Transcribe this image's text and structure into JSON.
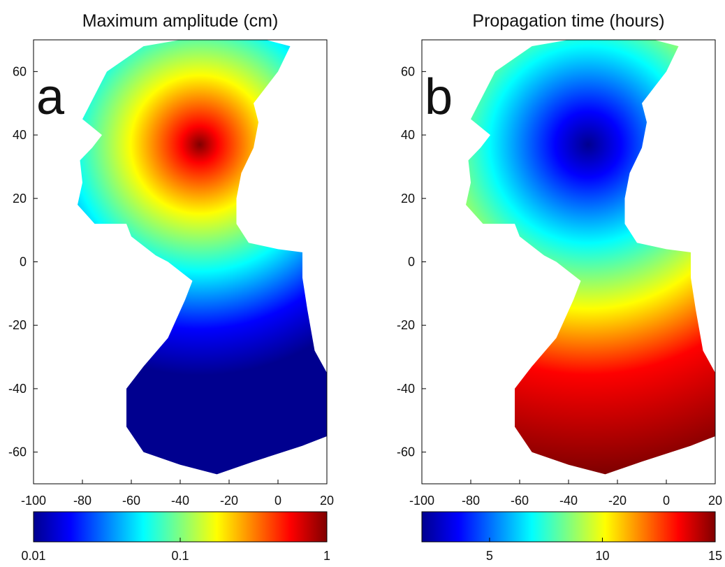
{
  "chart_data": [
    {
      "type": "map",
      "title": "Maximum amplitude (cm)",
      "panel_label": "a",
      "xlim": [
        -100,
        20
      ],
      "ylim": [
        -70,
        70
      ],
      "xticks": [
        -100,
        -80,
        -60,
        -40,
        -20,
        0,
        20
      ],
      "yticks": [
        -60,
        -40,
        -20,
        0,
        20,
        40,
        60
      ],
      "colormap": "jet",
      "colorbar": {
        "lim": [
          0.01,
          1
        ],
        "ticks": [
          0.01,
          0.1,
          1
        ],
        "log": true
      }
    },
    {
      "type": "map",
      "title": "Propagation time (hours)",
      "panel_label": "b",
      "xlim": [
        -100,
        20
      ],
      "ylim": [
        -70,
        70
      ],
      "xticks": [
        -100,
        -80,
        -60,
        -40,
        -20,
        0,
        20
      ],
      "yticks": [
        -60,
        -40,
        -20,
        0,
        20,
        40,
        60
      ],
      "colormap": "jet",
      "colorbar": {
        "lim": [
          2,
          15
        ],
        "ticks": [
          5,
          10,
          15
        ],
        "log": false
      }
    }
  ]
}
